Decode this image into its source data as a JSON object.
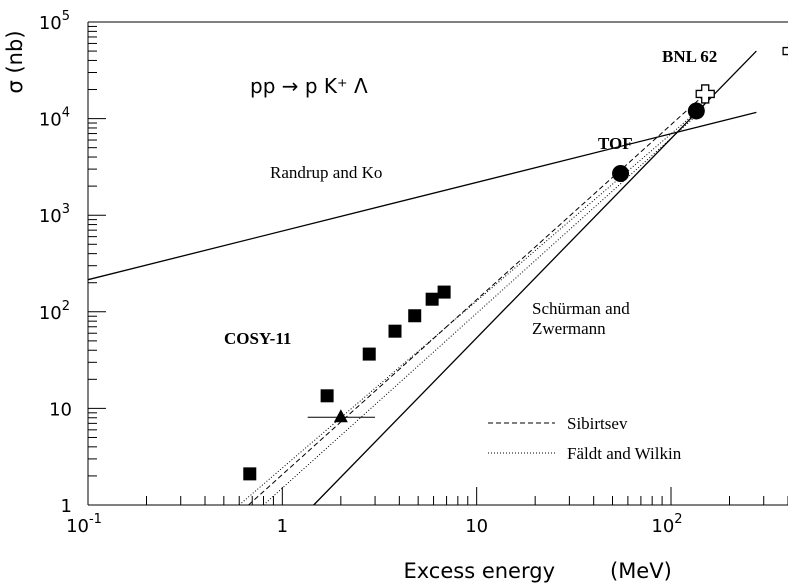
{
  "chart_data": {
    "type": "scatter",
    "title": "",
    "xlabel": "Excess energy",
    "xunit": "(MeV)",
    "ylabel": "σ (nb)",
    "xscale": "log",
    "yscale": "log",
    "xlim": [
      0.1,
      400
    ],
    "ylim": [
      1,
      100000
    ],
    "x_ticks": [
      {
        "value": 0.1,
        "base": "10",
        "exp": "-1",
        "text": ""
      },
      {
        "value": 1,
        "base": "",
        "exp": "",
        "text": "1"
      },
      {
        "value": 10,
        "base": "",
        "exp": "",
        "text": "10"
      },
      {
        "value": 100,
        "base": "10",
        "exp": "2",
        "text": ""
      }
    ],
    "y_ticks": [
      {
        "value": 1,
        "base": "",
        "exp": "",
        "text": "1"
      },
      {
        "value": 10,
        "base": "",
        "exp": "",
        "text": "10"
      },
      {
        "value": 100,
        "base": "10",
        "exp": "2",
        "text": ""
      },
      {
        "value": 1000,
        "base": "10",
        "exp": "3",
        "text": ""
      },
      {
        "value": 10000,
        "base": "10",
        "exp": "4",
        "text": ""
      },
      {
        "value": 100000,
        "base": "10",
        "exp": "5",
        "text": ""
      }
    ],
    "reaction": "pp → p K⁺ Λ",
    "datasets": [
      {
        "label": "COSY-11",
        "marker": "square",
        "x": [
          0.68,
          1.7,
          2.8,
          3.8,
          4.8,
          5.9,
          6.8
        ],
        "y": [
          2.1,
          13.5,
          36.5,
          63,
          91,
          135,
          160
        ]
      },
      {
        "label": "",
        "marker": "triangle",
        "x": [
          2.0
        ],
        "y": [
          8.1
        ],
        "xerr_low": [
          1.35
        ],
        "xerr_high": [
          3.0
        ]
      },
      {
        "label": "TOF",
        "marker": "circle",
        "x": [
          55,
          135
        ],
        "y": [
          2700,
          12000
        ]
      },
      {
        "label": "BNL 62",
        "marker": "cross-open",
        "x": [
          150,
          420
        ],
        "y": [
          18000,
          50000
        ]
      }
    ],
    "curves": [
      {
        "label": "Randrup and Ko",
        "style": "solid",
        "x": [
          0.1,
          275
        ],
        "y": [
          215,
          11600
        ]
      },
      {
        "label": "Schürman and Zwermann",
        "style": "solid",
        "x": [
          1.45,
          275
        ],
        "y": [
          1,
          50000
        ]
      },
      {
        "label": "Sibirtsev",
        "style": "dashed",
        "x": [
          0.67,
          150
        ],
        "y": [
          1,
          18000
        ]
      },
      {
        "label": "Fäldt and Wilkin",
        "style": "dotted",
        "x": [
          0.6,
          150
        ],
        "y": [
          1,
          14000
        ]
      },
      {
        "label": "",
        "style": "dotted",
        "x": [
          0.8,
          150
        ],
        "y": [
          1,
          13000
        ]
      }
    ],
    "legend": {
      "placement": "bottom-right",
      "entries": [
        {
          "label": "Sibirtsev",
          "style": "dashed"
        },
        {
          "label": "Fäldt and Wilkin",
          "style": "dotted"
        }
      ]
    },
    "annotations": {
      "cosy": "COSY-11",
      "tof": "TOF",
      "bnl": "BNL 62",
      "randrup": "Randrup and Ko",
      "schurman_1": "Schürman and",
      "schurman_2": "Zwermann"
    },
    "grid": false
  }
}
